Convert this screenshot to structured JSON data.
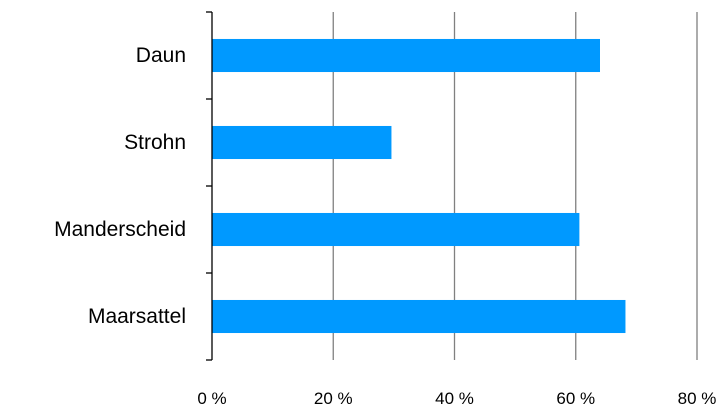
{
  "chart_data": {
    "type": "bar",
    "orientation": "horizontal",
    "title": "",
    "xlabel": "",
    "ylabel": "",
    "categories": [
      "Daun",
      "Strohn",
      "Manderscheid",
      "Maarsattel"
    ],
    "values": [
      64,
      29.6,
      60.6,
      68.2
    ],
    "xlim": [
      0,
      80
    ],
    "x_ticks": [
      0,
      20,
      40,
      60,
      80
    ],
    "x_tick_labels": [
      "0 %",
      "20 %",
      "40 %",
      "60 %",
      "80 %"
    ],
    "x_grid": true,
    "legend": "none",
    "bar_color": "#0099ff",
    "grid_color": "#808080",
    "axis_color": "#000000"
  }
}
